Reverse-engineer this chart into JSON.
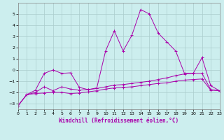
{
  "xlabel": "Windchill (Refroidissement éolien,°C)",
  "background_color": "#cceeee",
  "grid_color": "#aacccc",
  "line_color": "#aa00aa",
  "xlim": [
    0,
    23
  ],
  "ylim": [
    -3.5,
    6.0
  ],
  "xticks": [
    0,
    1,
    2,
    3,
    4,
    5,
    6,
    7,
    8,
    9,
    10,
    11,
    12,
    13,
    14,
    15,
    16,
    17,
    18,
    19,
    20,
    21,
    22,
    23
  ],
  "yticks": [
    -3,
    -2,
    -1,
    0,
    1,
    2,
    3,
    4,
    5
  ],
  "series1_x": [
    0,
    1,
    2,
    3,
    4,
    5,
    6,
    7,
    8,
    9,
    10,
    11,
    12,
    13,
    14,
    15,
    16,
    17,
    18,
    19,
    20,
    21,
    22,
    23
  ],
  "series1_y": [
    -3.2,
    -2.2,
    -2.1,
    -2.05,
    -2.0,
    -2.0,
    -2.1,
    -2.05,
    -1.95,
    -1.85,
    -1.7,
    -1.6,
    -1.55,
    -1.5,
    -1.4,
    -1.3,
    -1.2,
    -1.15,
    -1.0,
    -0.9,
    -0.85,
    -0.8,
    -1.8,
    -1.85
  ],
  "series2_x": [
    0,
    1,
    2,
    3,
    4,
    5,
    6,
    7,
    8,
    9,
    10,
    11,
    12,
    13,
    14,
    15,
    16,
    17,
    18,
    19,
    20,
    21,
    22,
    23
  ],
  "series2_y": [
    -3.2,
    -2.2,
    -2.0,
    -1.5,
    -1.85,
    -1.5,
    -1.7,
    -1.8,
    -1.75,
    -1.65,
    -1.5,
    -1.35,
    -1.3,
    -1.2,
    -1.1,
    -1.0,
    -0.85,
    -0.7,
    -0.5,
    -0.35,
    -0.3,
    -0.3,
    -1.75,
    -1.85
  ],
  "series3_x": [
    0,
    1,
    2,
    3,
    4,
    5,
    6,
    7,
    8,
    9,
    10,
    11,
    12,
    13,
    14,
    15,
    16,
    17,
    18,
    19,
    20,
    21,
    22,
    23
  ],
  "series3_y": [
    -3.2,
    -2.2,
    -1.8,
    -0.3,
    0.0,
    -0.3,
    -0.25,
    -1.55,
    -1.75,
    -1.6,
    1.7,
    3.5,
    1.7,
    3.1,
    5.4,
    5.0,
    3.3,
    2.5,
    1.7,
    -0.3,
    -0.3,
    1.1,
    -1.4,
    -1.85
  ]
}
